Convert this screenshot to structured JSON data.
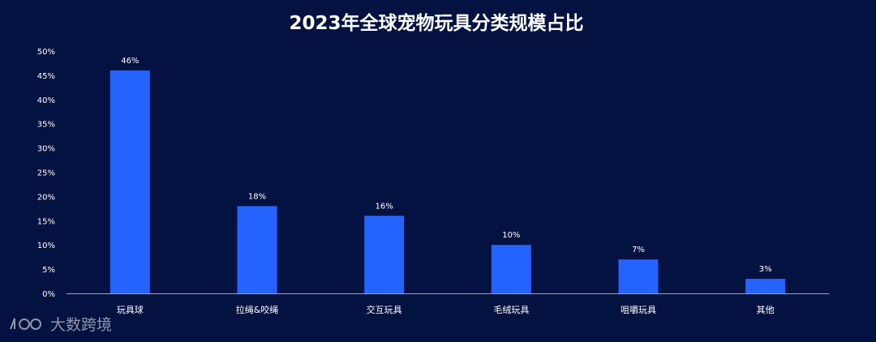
{
  "chart_data": {
    "type": "bar",
    "title": "2023年全球宠物玩具分类规模占比",
    "categories": [
      "玩具球",
      "拉绳&咬绳",
      "交互玩具",
      "毛绒玩具",
      "咀嚼玩具",
      "其他"
    ],
    "values": [
      46,
      18,
      16,
      10,
      7,
      3
    ],
    "data_labels": [
      "46%",
      "18%",
      "16%",
      "10%",
      "7%",
      "3%"
    ],
    "ylim": [
      0,
      50
    ],
    "yticks": [
      "0%",
      "5%",
      "10%",
      "15%",
      "20%",
      "25%",
      "30%",
      "35%",
      "40%",
      "45%",
      "50%"
    ],
    "grid": false,
    "xlabel": "",
    "ylabel": "",
    "bar_color": "#2563FF",
    "background": "#041241"
  },
  "watermark": {
    "text": "大数跨境",
    "logo_text": "100"
  }
}
